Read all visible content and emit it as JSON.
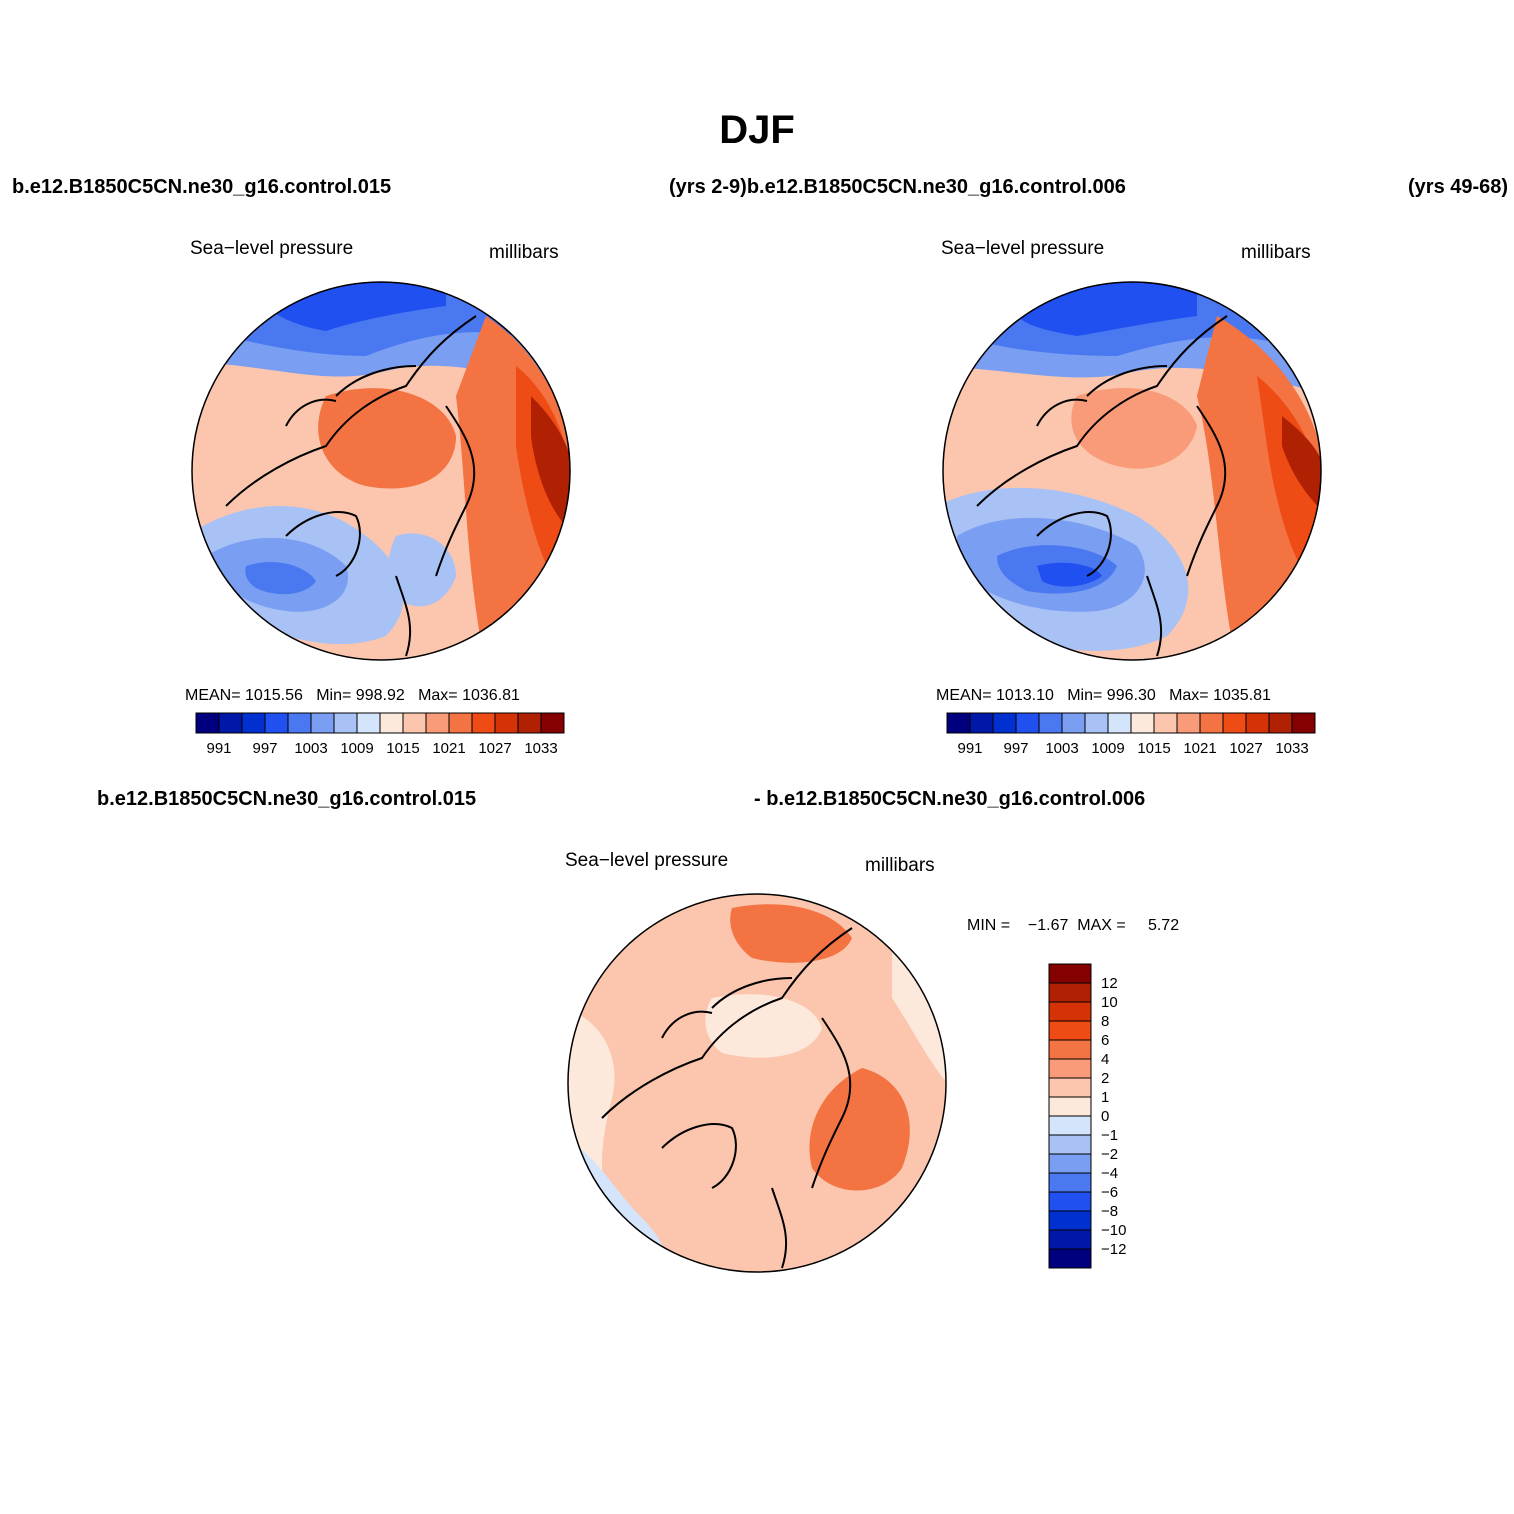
{
  "title": "DJF",
  "header": {
    "case_left": "b.e12.B1850C5CN.ne30_g16.control.015",
    "case_mid": "(yrs 2-9)b.e12.B1850C5CN.ne30_g16.control.006",
    "case_right": "(yrs 49-68)"
  },
  "diff_header": {
    "left": "b.e12.B1850C5CN.ne30_g16.control.015",
    "right": "- b.e12.B1850C5CN.ne30_g16.control.006"
  },
  "panels": [
    {
      "variable": "Sea−level pressure",
      "units": "millibars",
      "mean_label": "MEAN=",
      "mean": "1015.56",
      "min_label": "Min=",
      "min": "998.92",
      "max_label": "Max=",
      "max": "1036.81"
    },
    {
      "variable": "Sea−level pressure",
      "units": "millibars",
      "mean_label": "MEAN=",
      "mean": "1013.10",
      "min_label": "Min=",
      "min": "996.30",
      "max_label": "Max=",
      "max": "1035.81"
    },
    {
      "variable": "Sea−level pressure",
      "units": "millibars",
      "minmax_label": "MIN =    −1.67  MAX =     5.72"
    }
  ],
  "colorbar_abs": {
    "colors": [
      "#00007f",
      "#0018a8",
      "#0030d0",
      "#2050f0",
      "#4a78f0",
      "#7a9ef2",
      "#a9c2f5",
      "#d4e4fb",
      "#fde8dc",
      "#fbc6ad",
      "#f99b78",
      "#f47343",
      "#ef4b15",
      "#d53206",
      "#b02103",
      "#850000"
    ],
    "labels": [
      "991",
      "997",
      "1003",
      "1009",
      "1015",
      "1021",
      "1027",
      "1033"
    ]
  },
  "colorbar_diff": {
    "colors_top_to_bottom": [
      "#850000",
      "#b02103",
      "#d53206",
      "#ef4b15",
      "#f47343",
      "#f99b78",
      "#fbc6ad",
      "#fde8dc",
      "#d4e4fb",
      "#a9c2f5",
      "#7a9ef2",
      "#4a78f0",
      "#2050f0",
      "#0030d0",
      "#0018a8",
      "#00007f"
    ],
    "labels_top_to_bottom": [
      "12",
      "10",
      "8",
      "6",
      "4",
      "2",
      "1",
      "0",
      "−1",
      "−2",
      "−4",
      "−6",
      "−8",
      "−10",
      "−12"
    ]
  },
  "colors": {
    "coast": "#000000"
  }
}
